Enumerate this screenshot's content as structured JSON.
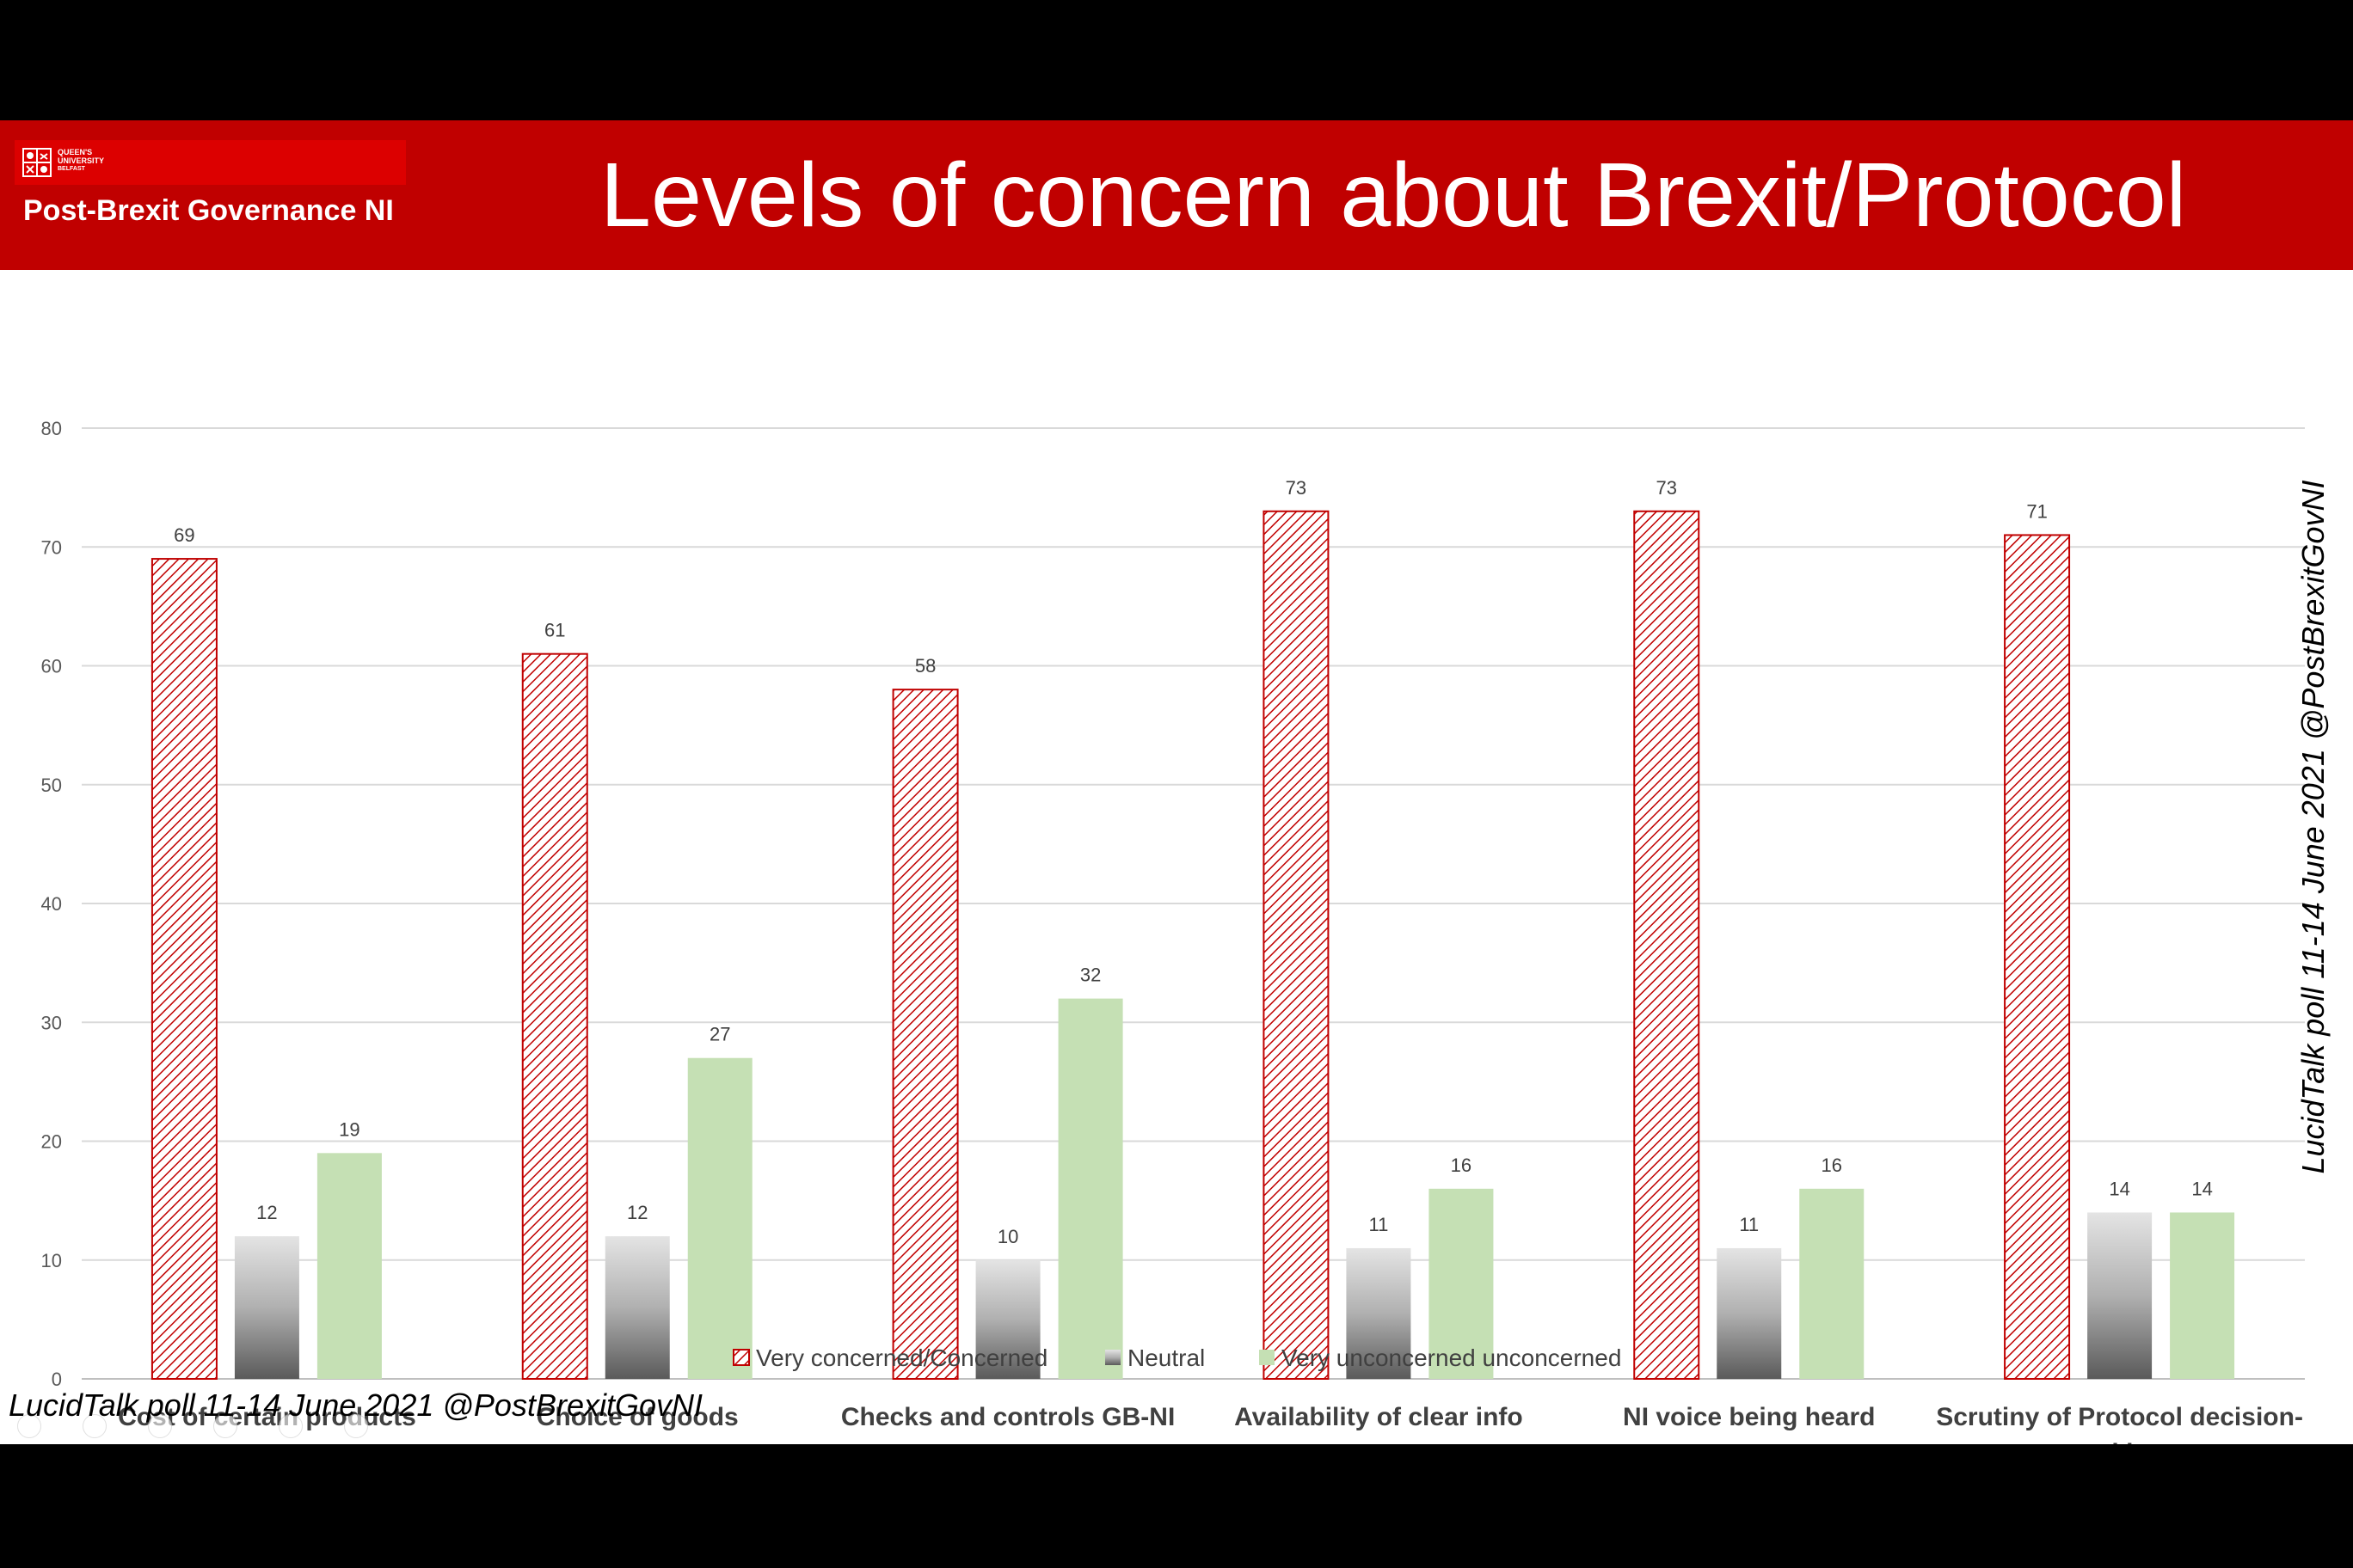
{
  "banner": {
    "logo_university_lines": [
      "QUEEN'S",
      "UNIVERSITY",
      "BELFAST"
    ],
    "logo_name": "Post-Brexit Governance NI",
    "title": "Levels of concern about Brexit/Protocol",
    "color": "#c00000",
    "logo_color": "#dc0000"
  },
  "credits": {
    "side": "LucidTalk poll 11-14 June 2021 @PostBrexitGovNI",
    "bottom": "LucidTalk poll 11-14 June 2021 @PostBrexitGovNI"
  },
  "chart_data": {
    "type": "bar",
    "title": "Levels of concern about Brexit/Protocol",
    "xlabel": "",
    "ylabel": "",
    "ylim": [
      0,
      80
    ],
    "yticks": [
      0,
      10,
      20,
      30,
      40,
      50,
      60,
      70,
      80
    ],
    "grid": true,
    "legend_position": "bottom",
    "categories": [
      [
        "Cost of certain products"
      ],
      [
        "Choice of goods"
      ],
      [
        "Checks and controls GB-NI"
      ],
      [
        "Availability of clear info"
      ],
      [
        "NI voice being heard"
      ],
      [
        "Scrutiny of Protocol decision-",
        "making"
      ]
    ],
    "series": [
      {
        "name": "Very concerned/Concerned",
        "fill": "hatch",
        "color": "#c00000",
        "values": [
          69,
          61,
          58,
          73,
          73,
          71
        ]
      },
      {
        "name": "Neutral",
        "fill": "gradient-gray",
        "color": "#7f7f7f",
        "values": [
          12,
          12,
          10,
          11,
          11,
          14
        ]
      },
      {
        "name": "Very unconcerned unconcerned",
        "fill": "solid",
        "color": "#c5e0b4",
        "values": [
          19,
          27,
          32,
          16,
          16,
          14
        ]
      }
    ]
  }
}
